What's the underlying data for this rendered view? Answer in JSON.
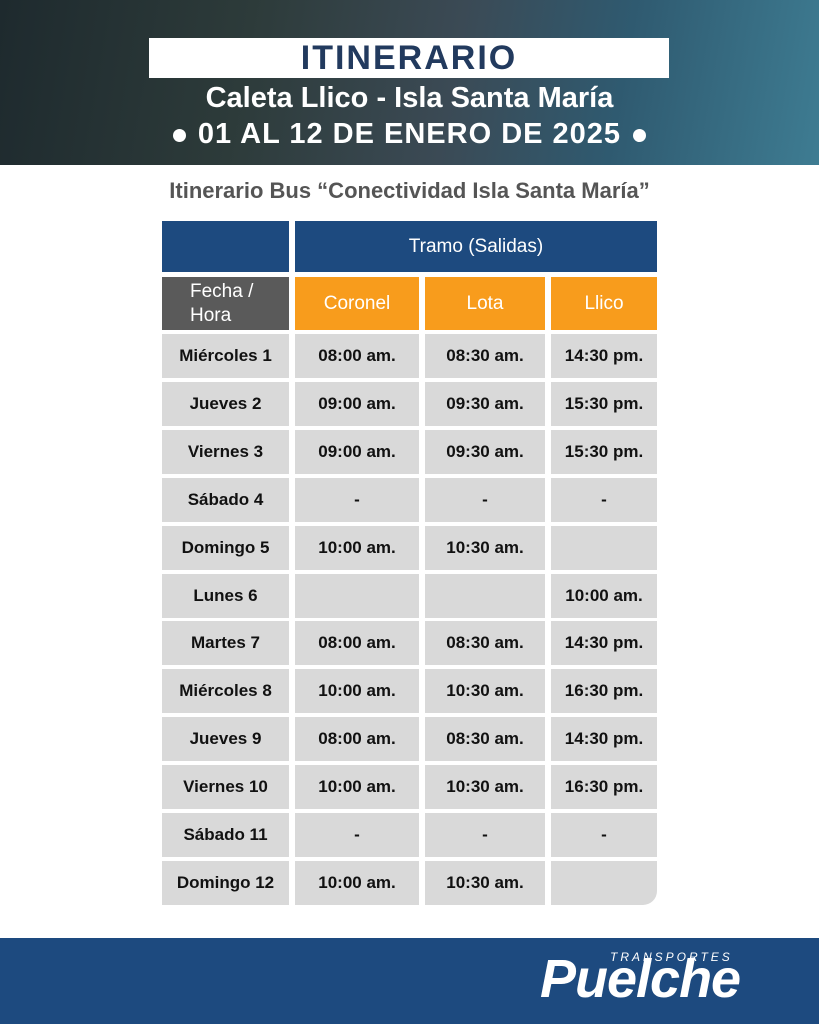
{
  "header": {
    "title": "ITINERARIO",
    "route": "Caleta Llico - Isla Santa María",
    "dates": "01 AL 12 DE ENERO DE 2025"
  },
  "subtitle": "Itinerario Bus “Conectividad Isla Santa María”",
  "table": {
    "group_header": "Tramo (Salidas)",
    "corner_header": "Fecha / Hora",
    "columns": [
      "Coronel",
      "Lota",
      "Llico"
    ],
    "rows": [
      [
        "Miércoles 1",
        "08:00 am.",
        "08:30 am.",
        "14:30 pm."
      ],
      [
        "Jueves 2",
        "09:00 am.",
        "09:30 am.",
        "15:30 pm."
      ],
      [
        "Viernes 3",
        "09:00 am.",
        "09:30 am.",
        "15:30 pm."
      ],
      [
        "Sábado 4",
        "-",
        "-",
        "-"
      ],
      [
        "Domingo 5",
        "10:00 am.",
        "10:30 am.",
        null
      ],
      [
        "Lunes 6",
        null,
        null,
        "10:00 am."
      ],
      [
        "Martes 7",
        "08:00 am.",
        "08:30 am.",
        "14:30 pm."
      ],
      [
        "Miércoles 8",
        "10:00 am.",
        "10:30 am.",
        "16:30 pm."
      ],
      [
        "Jueves 9",
        "08:00 am.",
        "08:30 am.",
        "14:30 pm."
      ],
      [
        "Viernes 10",
        "10:00 am.",
        "10:30 am.",
        "16:30 pm."
      ],
      [
        "Sábado 11",
        "-",
        "-",
        "-"
      ],
      [
        "Domingo 12",
        "10:00 am.",
        "10:30 am.",
        null
      ]
    ]
  },
  "footer": {
    "brand_small": "TRANSPORTES",
    "brand": "Puelche"
  }
}
